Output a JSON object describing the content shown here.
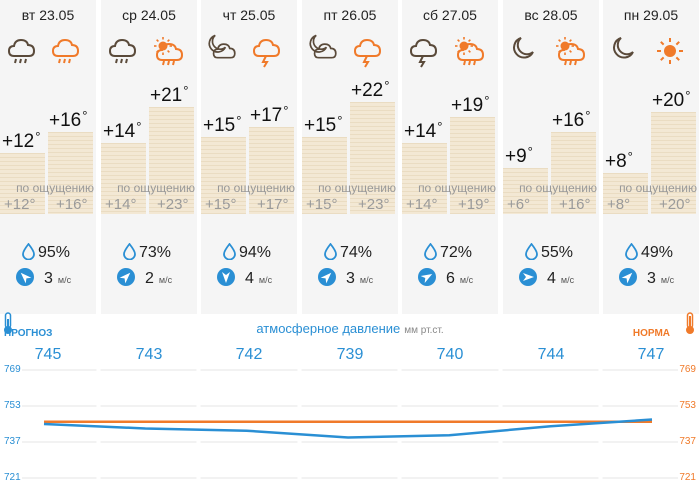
{
  "days": [
    {
      "date": "вт 23.05",
      "night_icon": "night-rain-cloud-icon",
      "day_icon": "day-rain-cloud-icon",
      "night_temp": "+12",
      "day_temp": "+16",
      "feels_night": "+12",
      "feels_day": "+16",
      "humidity": "95%",
      "wind": "3",
      "wind_deg": -45,
      "night_val": 12,
      "day_val": 16
    },
    {
      "date": "ср 24.05",
      "night_icon": "night-rain-cloud-icon",
      "day_icon": "sun-cloud-rain-icon",
      "night_temp": "+14",
      "day_temp": "+21",
      "feels_night": "+14",
      "feels_day": "+23",
      "humidity": "73%",
      "wind": "2",
      "wind_deg": 45,
      "night_val": 14,
      "day_val": 21
    },
    {
      "date": "чт 25.05",
      "night_icon": "moon-cloud-icon",
      "day_icon": "thunder-cloud-icon",
      "night_temp": "+15",
      "day_temp": "+17",
      "feels_night": "+15",
      "feels_day": "+17",
      "humidity": "94%",
      "wind": "4",
      "wind_deg": 180,
      "night_val": 15,
      "day_val": 17
    },
    {
      "date": "пт 26.05",
      "night_icon": "moon-cloud-icon",
      "day_icon": "thunder-cloud-icon",
      "night_temp": "+15",
      "day_temp": "+22",
      "feels_night": "+15",
      "feels_day": "+23",
      "humidity": "74%",
      "wind": "3",
      "wind_deg": 45,
      "night_val": 15,
      "day_val": 22
    },
    {
      "date": "сб 27.05",
      "night_icon": "night-thunder-cloud-icon",
      "day_icon": "sun-cloud-rain-icon",
      "night_temp": "+14",
      "day_temp": "+19",
      "feels_night": "+14",
      "feels_day": "+19",
      "humidity": "72%",
      "wind": "6",
      "wind_deg": 60,
      "night_val": 14,
      "day_val": 19
    },
    {
      "date": "вс 28.05",
      "night_icon": "moon-icon",
      "day_icon": "sun-cloud-rain-icon",
      "night_temp": "+9",
      "day_temp": "+16",
      "feels_night": "+6",
      "feels_day": "+16",
      "humidity": "55%",
      "wind": "4",
      "wind_deg": 90,
      "night_val": 9,
      "day_val": 16
    },
    {
      "date": "пн 29.05",
      "night_icon": "moon-icon",
      "day_icon": "sun-icon",
      "night_temp": "+8",
      "day_temp": "+20",
      "feels_night": "+8",
      "feels_day": "+20",
      "humidity": "49%",
      "wind": "3",
      "wind_deg": 45,
      "night_val": 8,
      "day_val": 20
    }
  ],
  "labels": {
    "feels_like": "по ощущению",
    "wind_unit": "м/с",
    "pressure_title": "атмосферное давление",
    "pressure_unit": "мм рт.ст.",
    "forecast": "ПРОГНОЗ",
    "norm": "НОРМА",
    "degree": "°"
  },
  "pressure": {
    "values": [
      745,
      743,
      742,
      739,
      740,
      744,
      747
    ],
    "display": [
      "745",
      "743",
      "742",
      "739",
      "740",
      "744",
      "747"
    ],
    "norm": 746,
    "ticks": [
      "769",
      "753",
      "737",
      "721"
    ],
    "ylim": [
      721,
      769
    ]
  },
  "colors": {
    "forecast": "#2a8fd4",
    "norm": "#f07a2a",
    "bar": "#f3e8d4",
    "column_bg": "#f5f5f5"
  }
}
